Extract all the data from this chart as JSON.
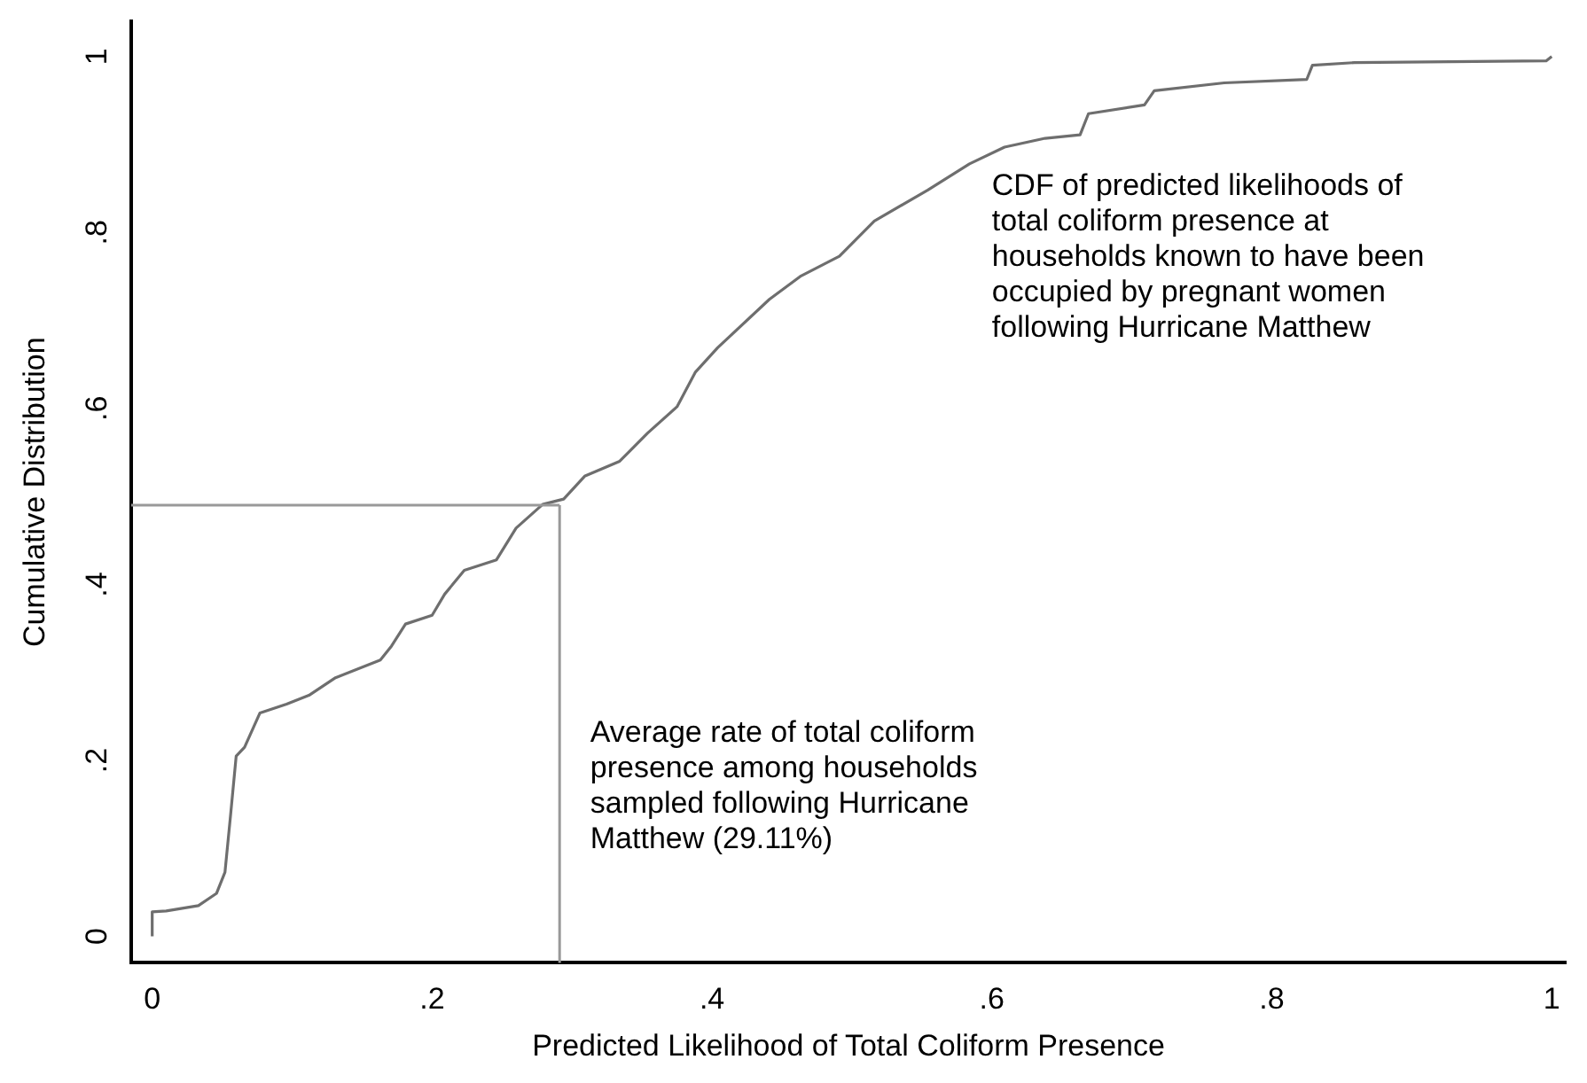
{
  "chart_data": {
    "type": "line",
    "xlabel": "Predicted Likelihood of Total Coliform Presence",
    "ylabel": "Cumulative Distribution",
    "xlim": [
      -0.015,
      1.01
    ],
    "ylim": [
      -0.03,
      1.04
    ],
    "xticks": [
      0,
      {
        "value": 0.2,
        "label": ".2"
      },
      {
        "value": 0.4,
        "label": ".4"
      },
      {
        "value": 0.6,
        "label": ".6"
      },
      {
        "value": 0.8,
        "label": ".8"
      },
      1
    ],
    "yticks": [
      0,
      {
        "value": 0.2,
        "label": ".2"
      },
      {
        "value": 0.4,
        "label": ".4"
      },
      {
        "value": 0.6,
        "label": ".6"
      },
      {
        "value": 0.8,
        "label": ".8"
      },
      1
    ],
    "grid": false,
    "legend": false,
    "marker": "none",
    "line_style": "solid",
    "series": [
      {
        "color": "#6e6e6e",
        "x": [
          0,
          0,
          0.01,
          0.033,
          0.046,
          0.052,
          0.056,
          0.06,
          0.066,
          0.077,
          0.096,
          0.112,
          0.131,
          0.163,
          0.171,
          0.181,
          0.2,
          0.209,
          0.223,
          0.246,
          0.26,
          0.279,
          0.294,
          0.309,
          0.334,
          0.354,
          0.375,
          0.388,
          0.404,
          0.441,
          0.463,
          0.491,
          0.516,
          0.554,
          0.584,
          0.609,
          0.638,
          0.663,
          0.669,
          0.709,
          0.716,
          0.766,
          0.825,
          0.829,
          0.859,
          0.996,
          1
        ],
        "values": [
          0,
          0.028,
          0.029,
          0.035,
          0.049,
          0.073,
          0.138,
          0.205,
          0.215,
          0.254,
          0.264,
          0.274,
          0.294,
          0.314,
          0.33,
          0.355,
          0.365,
          0.389,
          0.416,
          0.428,
          0.464,
          0.491,
          0.497,
          0.523,
          0.54,
          0.572,
          0.602,
          0.641,
          0.669,
          0.724,
          0.75,
          0.773,
          0.813,
          0.848,
          0.878,
          0.897,
          0.907,
          0.911,
          0.935,
          0.945,
          0.961,
          0.97,
          0.974,
          0.99,
          0.993,
          0.995,
          1
        ]
      }
    ],
    "ref_lines": [
      {
        "axis": "x",
        "value": 0.2911,
        "color": "#999999"
      },
      {
        "axis": "y",
        "value": 0.49,
        "color": "#999999"
      }
    ],
    "annotations": [
      "CDF of predicted likelihoods of\ntotal coliform presence at\nhouseholds known to have been\noccupied by pregnant women\nfollowing Hurricane Matthew",
      "Average rate of total coliform\npresence among households\nsampled following Hurricane\nMatthew (29.11%)"
    ]
  }
}
